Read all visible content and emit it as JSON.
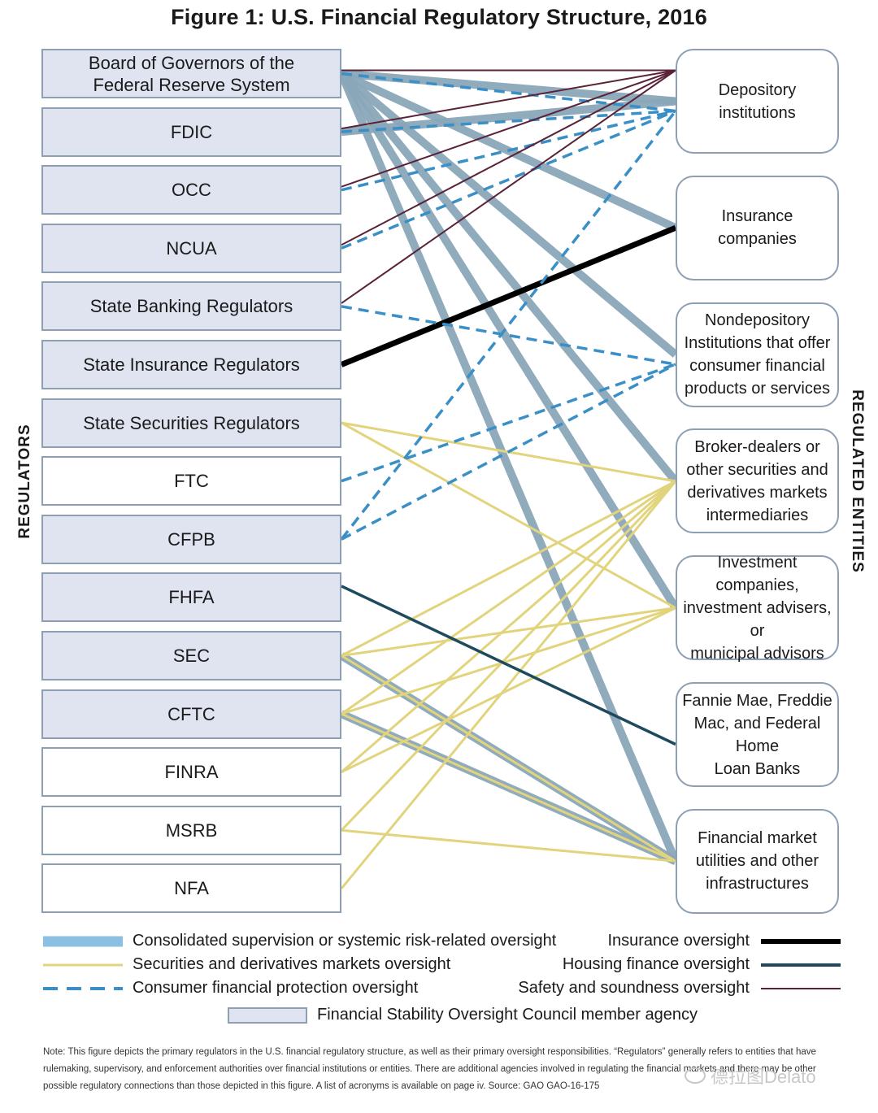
{
  "title": "Figure 1: U.S. Financial Regulatory Structure, 2016",
  "side_labels": {
    "regulators": "REGULATORS",
    "entities": "REGULATED ENTITIES"
  },
  "regulators": [
    {
      "id": "frb",
      "lines": [
        "Board of Governors of the",
        "Federal Reserve System"
      ],
      "fsoc": true
    },
    {
      "id": "fdic",
      "lines": [
        "FDIC"
      ],
      "fsoc": true
    },
    {
      "id": "occ",
      "lines": [
        "OCC"
      ],
      "fsoc": true
    },
    {
      "id": "ncua",
      "lines": [
        "NCUA"
      ],
      "fsoc": true
    },
    {
      "id": "sbr",
      "lines": [
        "State Banking Regulators"
      ],
      "fsoc": true
    },
    {
      "id": "sir",
      "lines": [
        "State Insurance Regulators"
      ],
      "fsoc": true
    },
    {
      "id": "ssr",
      "lines": [
        "State Securities Regulators"
      ],
      "fsoc": true
    },
    {
      "id": "ftc",
      "lines": [
        "FTC"
      ],
      "fsoc": false
    },
    {
      "id": "cfpb",
      "lines": [
        "CFPB"
      ],
      "fsoc": true
    },
    {
      "id": "fhfa",
      "lines": [
        "FHFA"
      ],
      "fsoc": true
    },
    {
      "id": "sec",
      "lines": [
        "SEC"
      ],
      "fsoc": true
    },
    {
      "id": "cftc",
      "lines": [
        "CFTC"
      ],
      "fsoc": true
    },
    {
      "id": "finra",
      "lines": [
        "FINRA"
      ],
      "fsoc": false
    },
    {
      "id": "msrb",
      "lines": [
        "MSRB"
      ],
      "fsoc": false
    },
    {
      "id": "nfa",
      "lines": [
        "NFA"
      ],
      "fsoc": false
    }
  ],
  "entities": [
    {
      "id": "dep",
      "lines": [
        "Depository",
        "institutions"
      ]
    },
    {
      "id": "ins",
      "lines": [
        "Insurance",
        "companies"
      ]
    },
    {
      "id": "nondep",
      "lines": [
        "Nondepository",
        "Institutions that offer",
        "consumer financial",
        "products or services"
      ]
    },
    {
      "id": "broker",
      "lines": [
        "Broker-dealers or",
        "other securities and",
        "derivatives markets",
        "intermediaries"
      ]
    },
    {
      "id": "invest",
      "lines": [
        "Investment companies,",
        "investment advisers, or",
        "municipal advisors"
      ]
    },
    {
      "id": "gse",
      "lines": [
        "Fannie Mae, Freddie",
        "Mac, and Federal Home",
        "Loan Banks"
      ]
    },
    {
      "id": "fmu",
      "lines": [
        "Financial market",
        "utilities and other",
        "infrastructures"
      ]
    }
  ],
  "oversight_types": {
    "consolidated": {
      "label": "Consolidated supervision or systemic risk-related oversight",
      "color": "#8aa7b8"
    },
    "securities": {
      "label": "Securities and derivatives markets oversight",
      "color": "#e2d47c"
    },
    "consumer": {
      "label": "Consumer financial protection oversight",
      "color": "#3a8fc7"
    },
    "insurance": {
      "label": "Insurance oversight",
      "color": "#000000"
    },
    "housing": {
      "label": "Housing finance oversight",
      "color": "#1d4a5e"
    },
    "safety": {
      "label": "Safety and soundness oversight",
      "color": "#5a2238"
    }
  },
  "fsoc_legend": {
    "label": "Financial Stability Oversight Council member agency",
    "fill": "#dfe4f0"
  },
  "connections": [
    {
      "from": "frb",
      "to": "dep",
      "type": "consolidated"
    },
    {
      "from": "frb",
      "to": "ins",
      "type": "consolidated"
    },
    {
      "from": "frb",
      "to": "nondep",
      "type": "consolidated"
    },
    {
      "from": "frb",
      "to": "broker",
      "type": "consolidated"
    },
    {
      "from": "frb",
      "to": "invest",
      "type": "consolidated"
    },
    {
      "from": "frb",
      "to": "fmu",
      "type": "consolidated"
    },
    {
      "from": "fdic",
      "to": "dep",
      "type": "consolidated"
    },
    {
      "from": "sec",
      "to": "fmu",
      "type": "consolidated"
    },
    {
      "from": "cftc",
      "to": "fmu",
      "type": "consolidated"
    },
    {
      "from": "frb",
      "to": "dep",
      "type": "safety"
    },
    {
      "from": "fdic",
      "to": "dep",
      "type": "safety"
    },
    {
      "from": "occ",
      "to": "dep",
      "type": "safety"
    },
    {
      "from": "ncua",
      "to": "dep",
      "type": "safety"
    },
    {
      "from": "sbr",
      "to": "dep",
      "type": "safety"
    },
    {
      "from": "frb",
      "to": "dep",
      "type": "consumer"
    },
    {
      "from": "fdic",
      "to": "dep",
      "type": "consumer"
    },
    {
      "from": "occ",
      "to": "dep",
      "type": "consumer"
    },
    {
      "from": "ncua",
      "to": "dep",
      "type": "consumer"
    },
    {
      "from": "cfpb",
      "to": "dep",
      "type": "consumer"
    },
    {
      "from": "sbr",
      "to": "nondep",
      "type": "consumer"
    },
    {
      "from": "ftc",
      "to": "nondep",
      "type": "consumer"
    },
    {
      "from": "cfpb",
      "to": "nondep",
      "type": "consumer"
    },
    {
      "from": "sir",
      "to": "ins",
      "type": "insurance"
    },
    {
      "from": "fhfa",
      "to": "gse",
      "type": "housing"
    },
    {
      "from": "ssr",
      "to": "broker",
      "type": "securities"
    },
    {
      "from": "ssr",
      "to": "invest",
      "type": "securities"
    },
    {
      "from": "sec",
      "to": "broker",
      "type": "securities"
    },
    {
      "from": "sec",
      "to": "invest",
      "type": "securities"
    },
    {
      "from": "sec",
      "to": "fmu",
      "type": "securities"
    },
    {
      "from": "cftc",
      "to": "broker",
      "type": "securities"
    },
    {
      "from": "cftc",
      "to": "invest",
      "type": "securities"
    },
    {
      "from": "cftc",
      "to": "fmu",
      "type": "securities"
    },
    {
      "from": "finra",
      "to": "broker",
      "type": "securities"
    },
    {
      "from": "finra",
      "to": "invest",
      "type": "securities"
    },
    {
      "from": "msrb",
      "to": "broker",
      "type": "securities"
    },
    {
      "from": "msrb",
      "to": "fmu",
      "type": "securities"
    },
    {
      "from": "nfa",
      "to": "broker",
      "type": "securities"
    }
  ],
  "note": "Note: This figure depicts the primary regulators in the U.S. financial regulatory structure, as well as their primary oversight responsibilities. “Regulators” generally refers to entities that have rulemaking, supervisory, and enforcement authorities over financial institutions or entities. There are additional agencies involved in regulating the financial markets and there may be other possible regulatory connections than those depicted in this figure. A list of acronyms is available on page iv. Source: GAO GAO-16-175",
  "watermark": "德拉图Delato"
}
